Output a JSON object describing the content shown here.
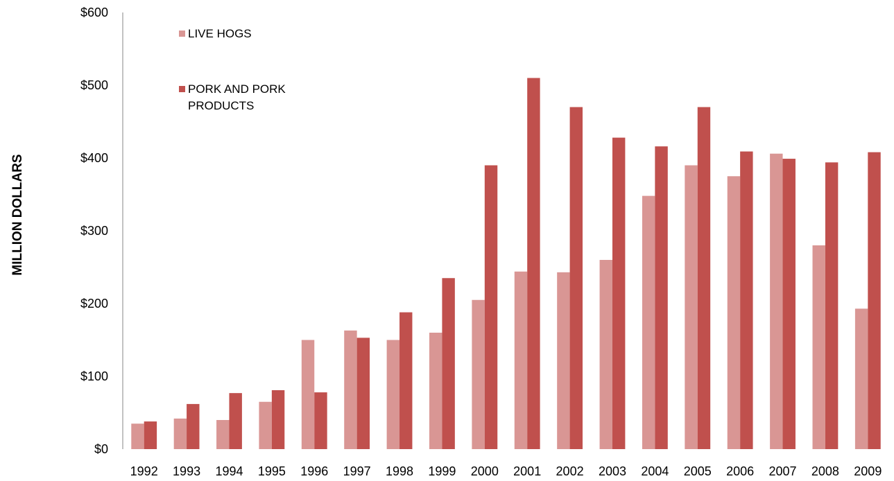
{
  "chart_data": {
    "type": "bar",
    "title": "",
    "xlabel": "",
    "ylabel": "MILLION DOLLARS",
    "ylim": [
      0,
      600
    ],
    "yticks": [
      0,
      100,
      200,
      300,
      400,
      500,
      600
    ],
    "ytick_labels": [
      "$0",
      "$100",
      "$200",
      "$300",
      "$400",
      "$500",
      "$600"
    ],
    "grid": false,
    "legend_position": "top-left",
    "categories": [
      "1992",
      "1993",
      "1994",
      "1995",
      "1996",
      "1997",
      "1998",
      "1999",
      "2000",
      "2001",
      "2002",
      "2003",
      "2004",
      "2005",
      "2006",
      "2007",
      "2008",
      "2009"
    ],
    "series": [
      {
        "name": "LIVE HOGS",
        "color": "#d99694",
        "values": [
          35,
          42,
          40,
          65,
          150,
          163,
          150,
          160,
          205,
          244,
          243,
          260,
          348,
          390,
          375,
          406,
          280,
          193
        ]
      },
      {
        "name": "PORK AND PORK PRODUCTS",
        "name_lines": [
          "PORK AND PORK",
          "PRODUCTS"
        ],
        "color": "#c0504d",
        "values": [
          38,
          62,
          77,
          81,
          78,
          153,
          188,
          235,
          390,
          510,
          470,
          428,
          416,
          470,
          409,
          399,
          394,
          408
        ]
      }
    ]
  }
}
